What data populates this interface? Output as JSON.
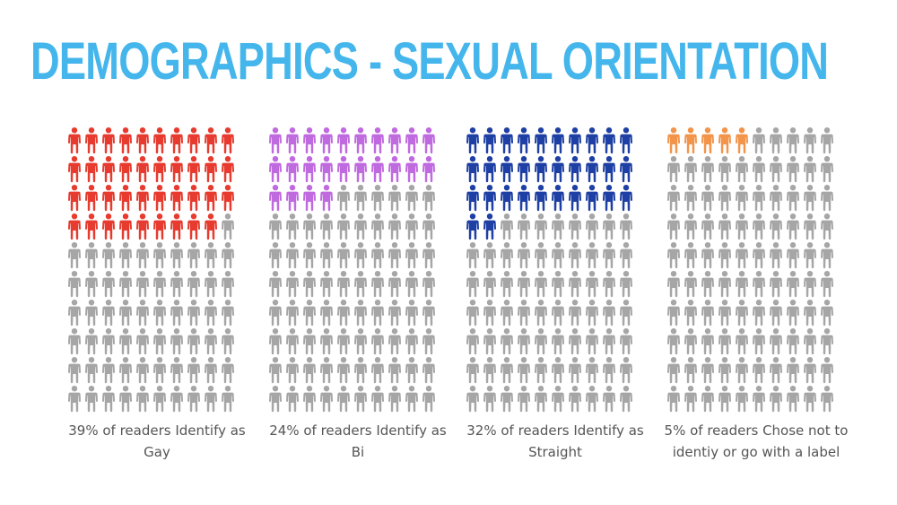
{
  "title": "DEMOGRAPHICS - SEXUAL ORIENTATION",
  "colors": {
    "title": "#45b6ec",
    "inactive": "#a6a6a6",
    "gay": "#e63b2e",
    "bi": "#c06ae0",
    "straight": "#1e3fa3",
    "unlabeled": "#f2944a"
  },
  "chart_data": [
    {
      "type": "pictogram",
      "total_icons": 100,
      "value": 39,
      "unit": "%",
      "color": "#e63b2e",
      "caption": "39% of readers Identify as Gay"
    },
    {
      "type": "pictogram",
      "total_icons": 100,
      "value": 24,
      "unit": "%",
      "color": "#c06ae0",
      "caption": "24% of readers Identify as Bi"
    },
    {
      "type": "pictogram",
      "total_icons": 100,
      "value": 32,
      "unit": "%",
      "color": "#1e3fa3",
      "caption": "32% of readers Identify as Straight"
    },
    {
      "type": "pictogram",
      "total_icons": 100,
      "value": 5,
      "unit": "%",
      "color": "#f2944a",
      "caption": "5% of readers Chose not to identiy or go with a label"
    }
  ]
}
